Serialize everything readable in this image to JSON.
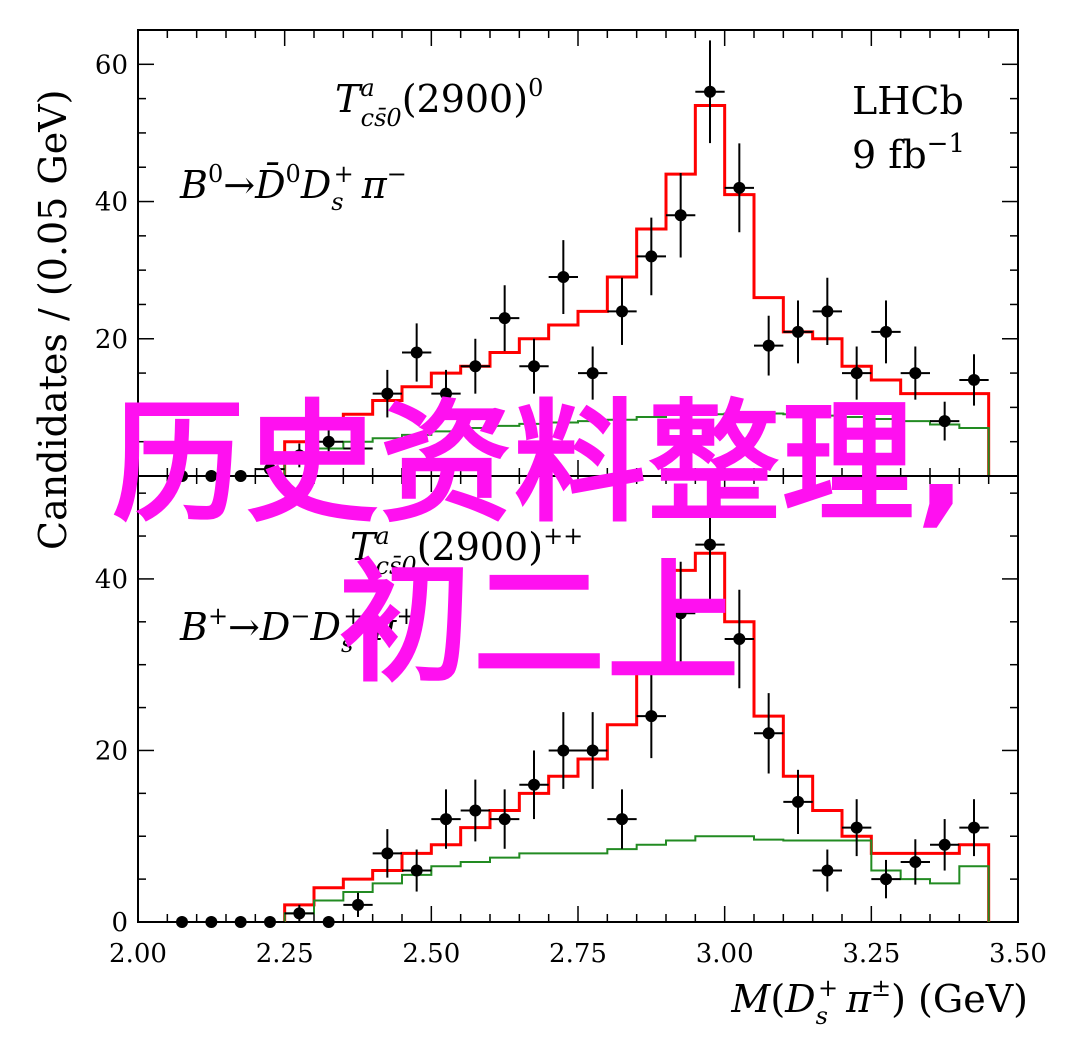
{
  "chart_data": [
    {
      "type": "line",
      "panel": "top",
      "annotation_title": "T^a_{cs̄0}(2900)^0",
      "annotation_decay": "B^0→D̄^0 D_s^+ π^−",
      "experiment_label": "LHCb",
      "luminosity_label": "9 fb^−1",
      "ylim": [
        0,
        65
      ],
      "y_ticks": [
        "20",
        "40",
        "60"
      ],
      "series": [
        {
          "name": "",
          "type": "errorbar",
          "color": "#000000",
          "x": [
            2.075,
            2.125,
            2.175,
            2.225,
            2.275,
            2.325,
            2.375,
            2.425,
            2.475,
            2.525,
            2.575,
            2.625,
            2.675,
            2.725,
            2.775,
            2.825,
            2.875,
            2.925,
            2.975,
            3.025,
            3.075,
            3.125,
            3.175,
            3.225,
            3.275,
            3.325,
            3.375,
            3.425
          ],
          "values": [
            0,
            0,
            0,
            1,
            3,
            5,
            4,
            12,
            18,
            12,
            16,
            23,
            16,
            29,
            15,
            24,
            32,
            38,
            56,
            42,
            19,
            21,
            24,
            15,
            21,
            15,
            8,
            14
          ]
        },
        {
          "name": "",
          "type": "step",
          "color": "#ff0000",
          "edges": [
            2.25,
            2.3,
            2.35,
            2.4,
            2.45,
            2.5,
            2.55,
            2.6,
            2.65,
            2.7,
            2.75,
            2.8,
            2.85,
            2.9,
            2.95,
            3.0,
            3.05,
            3.1,
            3.15,
            3.2,
            3.25,
            3.3,
            3.35,
            3.4,
            3.45
          ],
          "values": [
            5,
            7,
            9,
            11,
            13,
            15,
            16,
            18,
            20,
            22,
            24,
            29,
            36,
            44,
            54,
            41,
            26,
            21,
            20,
            16,
            14,
            12,
            12,
            12,
            0
          ]
        },
        {
          "name": "",
          "type": "step",
          "color": "#228b22",
          "edges": [
            2.25,
            2.3,
            2.35,
            2.4,
            2.45,
            2.5,
            2.55,
            2.6,
            2.65,
            2.7,
            2.75,
            2.8,
            2.85,
            2.9,
            2.95,
            3.0,
            3.05,
            3.1,
            3.15,
            3.2,
            3.25,
            3.3,
            3.35,
            3.4,
            3.45
          ],
          "values": [
            3,
            4,
            5,
            5.5,
            6,
            6.5,
            7,
            7.3,
            7.6,
            7.8,
            8,
            8.2,
            8.6,
            8.9,
            9,
            9.1,
            9.1,
            9,
            8.8,
            8.6,
            8.3,
            8,
            7.5,
            7,
            0
          ]
        }
      ]
    },
    {
      "type": "line",
      "panel": "bottom",
      "annotation_title": "T^a_{cs̄0}(2900)^{++}",
      "annotation_decay": "B^+→D^− D_s^+ π^+",
      "ylim": [
        0,
        52
      ],
      "y_ticks": [
        "0",
        "20",
        "40"
      ],
      "x_ticks": [
        "2.00",
        "2.25",
        "2.50",
        "2.75",
        "3.00",
        "3.25",
        "3.50"
      ],
      "xlim": [
        2.0,
        3.5
      ],
      "series": [
        {
          "name": "",
          "type": "errorbar",
          "color": "#000000",
          "x": [
            2.075,
            2.125,
            2.175,
            2.225,
            2.275,
            2.325,
            2.375,
            2.425,
            2.475,
            2.525,
            2.575,
            2.625,
            2.675,
            2.725,
            2.775,
            2.825,
            2.875,
            2.925,
            2.975,
            3.025,
            3.075,
            3.125,
            3.175,
            3.225,
            3.275,
            3.325,
            3.375,
            3.425
          ],
          "values": [
            0,
            0,
            0,
            0,
            1,
            0,
            2,
            8,
            6,
            12,
            13,
            12,
            16,
            20,
            20,
            12,
            24,
            36,
            44,
            33,
            22,
            14,
            6,
            11,
            5,
            7,
            9,
            11
          ]
        },
        {
          "name": "",
          "type": "step",
          "color": "#ff0000",
          "edges": [
            2.25,
            2.3,
            2.35,
            2.4,
            2.45,
            2.5,
            2.55,
            2.6,
            2.65,
            2.7,
            2.75,
            2.8,
            2.85,
            2.9,
            2.95,
            3.0,
            3.05,
            3.1,
            3.15,
            3.2,
            3.25,
            3.3,
            3.35,
            3.4,
            3.45
          ],
          "values": [
            2,
            4,
            5,
            6,
            8,
            9,
            11,
            13,
            15,
            17,
            19,
            23,
            30,
            41,
            43,
            35,
            24,
            17,
            13,
            10,
            8,
            8,
            8,
            9,
            0
          ]
        },
        {
          "name": "",
          "type": "step",
          "color": "#228b22",
          "edges": [
            2.25,
            2.3,
            2.35,
            2.4,
            2.45,
            2.5,
            2.55,
            2.6,
            2.65,
            2.7,
            2.75,
            2.8,
            2.85,
            2.9,
            2.95,
            3.0,
            3.05,
            3.1,
            3.15,
            3.2,
            3.25,
            3.3,
            3.35,
            3.4,
            3.45
          ],
          "values": [
            1,
            2.5,
            3.5,
            4.5,
            5.5,
            6.5,
            7,
            7.5,
            8,
            8,
            8,
            8.5,
            9,
            9.5,
            10,
            10,
            9.6,
            9.5,
            9.5,
            9.5,
            6,
            5,
            4.5,
            6.5,
            0
          ]
        }
      ]
    }
  ],
  "axes": {
    "ylabel": "Candidates / (0.05 GeV)",
    "xlabel": "M(D_s^+ π^±) (GeV)"
  },
  "overlay": {
    "line1": "历史资料整理,",
    "line2": "初二上",
    "color": "#ff10f0"
  }
}
